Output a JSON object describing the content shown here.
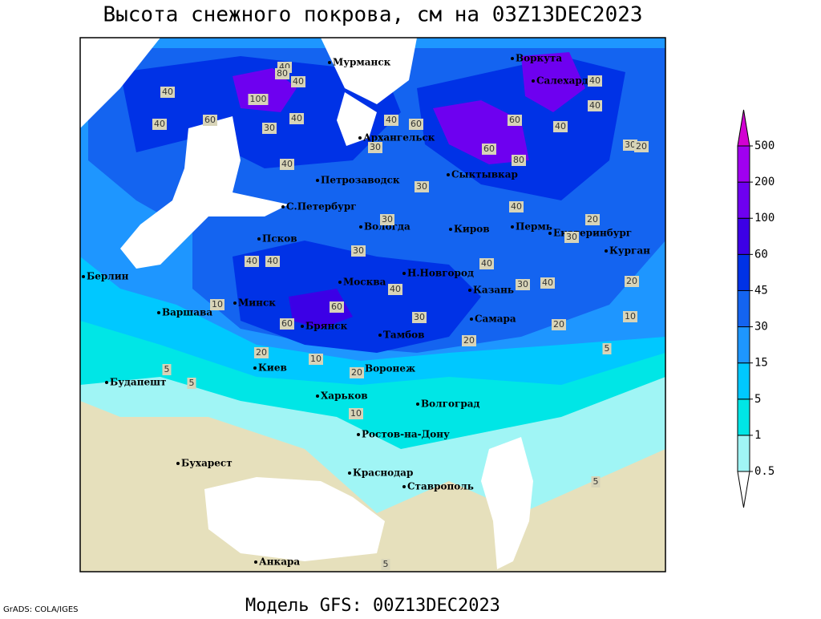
{
  "title": "Высота снежного покрова, см на 03Z13DEC2023",
  "model": "Модель GFS: 00Z13DEC2023",
  "credit": "GrADS: COLA/IGES",
  "colorbar": {
    "levels": [
      0.5,
      1,
      5,
      15,
      30,
      45,
      60,
      100,
      200,
      500
    ],
    "colors": [
      "#ffffff",
      "#a0f5f5",
      "#00e6e6",
      "#00c8ff",
      "#1e96ff",
      "#1464f0",
      "#0032e6",
      "#3c00e6",
      "#6e00f0",
      "#a000f0",
      "#d200d2"
    ]
  },
  "cities": [
    "Мурманск",
    "Воркута",
    "Салехард",
    "Архангельск",
    "Сыктывкар",
    "Петрозаводск",
    "С.Петербург",
    "Вологда",
    "Киров",
    "Пермь",
    "Екатеринбург",
    "Курган",
    "Псков",
    "Берлин",
    "Н.Новгород",
    "Москва",
    "Казань",
    "Минск",
    "Варшава",
    "Брянск",
    "Самара",
    "Тамбов",
    "Воронеж",
    "Киев",
    "Будапешт",
    "Харьков",
    "Волгоград",
    "Ростов-на-Дону",
    "Бухарест",
    "Краснодар",
    "Ставрополь",
    "Анкара"
  ],
  "contour_labels": [
    40,
    80,
    40,
    40,
    100,
    60,
    40,
    40,
    30,
    40,
    60,
    40,
    40,
    60,
    40,
    60,
    30,
    40,
    80,
    30,
    20,
    30,
    40,
    30,
    20,
    30,
    40,
    40,
    30,
    40,
    20,
    40,
    30,
    40,
    10,
    60,
    60,
    30,
    20,
    10,
    20,
    20,
    10,
    20,
    5,
    5,
    10,
    5,
    5,
    5
  ]
}
